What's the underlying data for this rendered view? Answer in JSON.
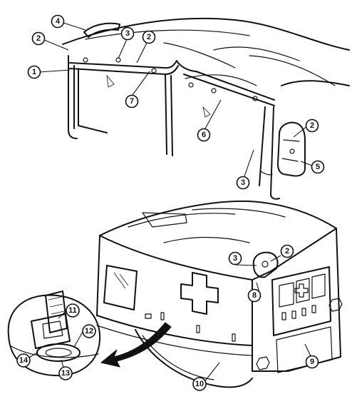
{
  "callouts": {
    "c1": "1",
    "c2a": "2",
    "c2b": "2",
    "c2c": "2",
    "c2d": "2",
    "c3a": "3",
    "c3b": "3",
    "c3c": "3",
    "c4": "4",
    "c5": "5",
    "c6": "6",
    "c7": "7",
    "c8": "8",
    "c9": "9",
    "c10": "10",
    "c11": "11",
    "c12": "12",
    "c13": "13",
    "c14": "14"
  }
}
